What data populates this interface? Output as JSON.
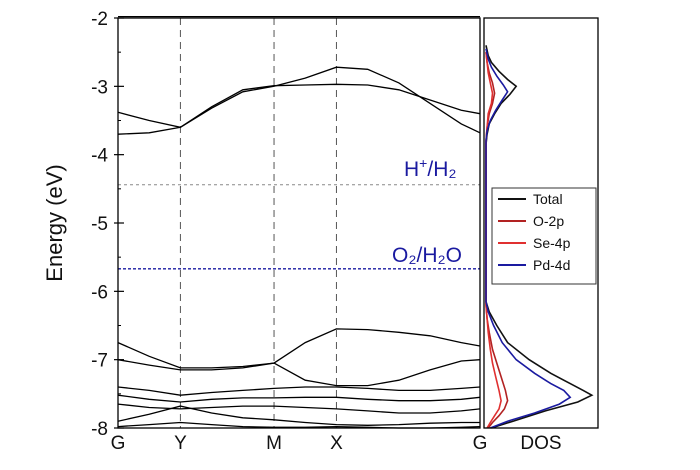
{
  "chart_data": [
    {
      "type": "line",
      "subtype": "band-structure",
      "title": "",
      "ylabel": "Energy (eV)",
      "xlabel": "",
      "ylim": [
        -8,
        -2
      ],
      "yticks": [
        -2,
        -3,
        -4,
        -5,
        -6,
        -7,
        -8
      ],
      "kpoints": [
        {
          "label": "G",
          "x": 0
        },
        {
          "label": "Y",
          "x": 1
        },
        {
          "label": "M",
          "x": 2.5
        },
        {
          "label": "X",
          "x": 3.5
        },
        {
          "label": "G",
          "x": 5.8
        }
      ],
      "reference_levels": [
        {
          "label": "H⁺/H₂",
          "label_main": "H",
          "label_sup": "+",
          "label_rest": "/H₂",
          "energy": -4.44,
          "color": "#888888"
        },
        {
          "label": "O₂/H₂O",
          "energy": -5.67,
          "color": "#1a1aa0"
        }
      ],
      "band_color": "#000000",
      "bands": [
        {
          "x": [
            0,
            0.5,
            1,
            1.5,
            2,
            2.5,
            3,
            3.5,
            4,
            4.5,
            5,
            5.5,
            5.8
          ],
          "y": [
            -3.7,
            -3.68,
            -3.6,
            -3.3,
            -3.05,
            -2.99,
            -2.98,
            -2.97,
            -2.98,
            -3.05,
            -3.2,
            -3.35,
            -3.4
          ]
        },
        {
          "x": [
            0,
            0.5,
            1,
            1.5,
            2,
            2.5,
            3,
            3.5,
            4,
            4.5,
            5,
            5.5,
            5.8
          ],
          "y": [
            -3.38,
            -3.5,
            -3.6,
            -3.32,
            -3.08,
            -3.0,
            -2.88,
            -2.72,
            -2.75,
            -2.95,
            -3.25,
            -3.55,
            -3.68
          ]
        },
        {
          "x": [
            0,
            0.5,
            1,
            1.5,
            2,
            2.5,
            3,
            3.5,
            4,
            4.5,
            5,
            5.5,
            5.8
          ],
          "y": [
            -6.75,
            -6.95,
            -7.12,
            -7.12,
            -7.1,
            -7.05,
            -6.75,
            -6.55,
            -6.56,
            -6.6,
            -6.65,
            -6.75,
            -6.8
          ]
        },
        {
          "x": [
            0,
            0.5,
            1,
            1.5,
            2,
            2.5,
            3,
            3.5,
            4,
            4.5,
            5,
            5.5,
            5.8
          ],
          "y": [
            -7.0,
            -7.08,
            -7.15,
            -7.15,
            -7.12,
            -7.05,
            -7.3,
            -7.38,
            -7.38,
            -7.3,
            -7.15,
            -7.02,
            -7.0
          ]
        },
        {
          "x": [
            0,
            0.5,
            1,
            1.5,
            2,
            2.5,
            3,
            3.5,
            4,
            4.5,
            5,
            5.5,
            5.8
          ],
          "y": [
            -7.4,
            -7.45,
            -7.52,
            -7.48,
            -7.45,
            -7.42,
            -7.4,
            -7.4,
            -7.42,
            -7.45,
            -7.45,
            -7.42,
            -7.4
          ]
        },
        {
          "x": [
            0,
            0.5,
            1,
            1.5,
            2,
            2.5,
            3,
            3.5,
            4,
            4.5,
            5,
            5.5,
            5.8
          ],
          "y": [
            -7.52,
            -7.58,
            -7.62,
            -7.58,
            -7.56,
            -7.56,
            -7.55,
            -7.55,
            -7.58,
            -7.6,
            -7.6,
            -7.58,
            -7.55
          ]
        },
        {
          "x": [
            0,
            0.5,
            1,
            1.5,
            2,
            2.5,
            3,
            3.5,
            4,
            4.5,
            5,
            5.5,
            5.8
          ],
          "y": [
            -7.65,
            -7.7,
            -7.72,
            -7.7,
            -7.68,
            -7.68,
            -7.7,
            -7.72,
            -7.75,
            -7.78,
            -7.78,
            -7.75,
            -7.72
          ]
        },
        {
          "x": [
            0,
            0.5,
            1,
            1.5,
            2,
            2.5,
            3,
            3.5,
            4,
            4.5,
            5,
            5.5,
            5.8
          ],
          "y": [
            -7.9,
            -7.8,
            -7.68,
            -7.78,
            -7.85,
            -7.88,
            -7.92,
            -7.95,
            -7.96,
            -7.95,
            -7.93,
            -7.92,
            -7.92
          ]
        },
        {
          "x": [
            0,
            0.5,
            1,
            1.5,
            2,
            2.5,
            3,
            3.5,
            4,
            4.5,
            5,
            5.5,
            5.8
          ],
          "y": [
            -7.98,
            -7.95,
            -7.92,
            -7.95,
            -7.98,
            -7.99,
            -7.99,
            -7.98,
            -7.99,
            -8.0,
            -8.0,
            -7.99,
            -7.98
          ]
        },
        {
          "x": [
            0,
            0.5,
            1,
            1.5,
            2,
            2.5,
            3,
            3.5,
            4,
            4.5,
            5,
            5.5,
            5.8
          ],
          "y": [
            -1.98,
            -1.98,
            -1.98,
            -1.98,
            -1.98,
            -1.98,
            -1.98,
            -1.98,
            -1.98,
            -1.98,
            -1.98,
            -1.98,
            -1.98
          ]
        }
      ]
    },
    {
      "type": "line",
      "subtype": "density-of-states",
      "xlabel": "DOS",
      "ylabel": "",
      "ylim": [
        -8,
        -2
      ],
      "xlim": [
        0,
        1
      ],
      "legend": {
        "position": "right-middle"
      },
      "series": [
        {
          "name": "Total",
          "color": "#111111",
          "x": [
            0,
            0.02,
            0.05,
            0.12,
            0.2,
            0.28,
            0.22,
            0.14,
            0.08,
            0.03,
            0.01,
            0,
            0,
            0,
            0,
            0.03,
            0.1,
            0.2,
            0.4,
            0.6,
            0.78,
            0.9,
            0.98,
            0.85,
            0.55,
            0.25,
            0.05
          ],
          "y": [
            -2.4,
            -2.55,
            -2.65,
            -2.78,
            -2.9,
            -3.0,
            -3.12,
            -3.25,
            -3.4,
            -3.55,
            -3.7,
            -3.85,
            -5.0,
            -6.0,
            -6.15,
            -6.3,
            -6.5,
            -6.75,
            -7.0,
            -7.2,
            -7.35,
            -7.45,
            -7.52,
            -7.62,
            -7.75,
            -7.9,
            -8.0
          ]
        },
        {
          "name": "O-2p",
          "color": "#b22222",
          "x": [
            0,
            0.01,
            0.03,
            0.06,
            0.08,
            0.06,
            0.03,
            0.01,
            0,
            0,
            0,
            0.01,
            0.03,
            0.06,
            0.1,
            0.14,
            0.18,
            0.2,
            0.17,
            0.12,
            0.06,
            0.02
          ],
          "y": [
            -2.5,
            -2.65,
            -2.8,
            -2.95,
            -3.1,
            -3.25,
            -3.4,
            -3.6,
            -3.8,
            -6.0,
            -6.2,
            -6.4,
            -6.6,
            -6.85,
            -7.05,
            -7.25,
            -7.45,
            -7.6,
            -7.72,
            -7.82,
            -7.92,
            -8.0
          ]
        },
        {
          "name": "Se-4p",
          "color": "#e03030",
          "x": [
            0,
            0.01,
            0.02,
            0.04,
            0.06,
            0.05,
            0.02,
            0.01,
            0,
            0,
            0,
            0.01,
            0.02,
            0.04,
            0.06,
            0.09,
            0.12,
            0.14,
            0.12,
            0.08,
            0.04,
            0.01
          ],
          "y": [
            -2.5,
            -2.65,
            -2.8,
            -2.95,
            -3.1,
            -3.25,
            -3.4,
            -3.6,
            -3.8,
            -6.0,
            -6.2,
            -6.4,
            -6.6,
            -6.85,
            -7.05,
            -7.25,
            -7.45,
            -7.6,
            -7.72,
            -7.82,
            -7.92,
            -8.0
          ]
        },
        {
          "name": "Pd-4d",
          "color": "#1a1aa0",
          "x": [
            0,
            0.02,
            0.05,
            0.1,
            0.16,
            0.2,
            0.15,
            0.09,
            0.04,
            0.01,
            0,
            0,
            0,
            0.02,
            0.07,
            0.15,
            0.28,
            0.45,
            0.6,
            0.72,
            0.78,
            0.68,
            0.45,
            0.2,
            0.04
          ],
          "y": [
            -2.45,
            -2.6,
            -2.72,
            -2.85,
            -2.98,
            -3.08,
            -3.2,
            -3.35,
            -3.5,
            -3.65,
            -3.8,
            -6.0,
            -6.15,
            -6.3,
            -6.5,
            -6.75,
            -7.0,
            -7.2,
            -7.35,
            -7.45,
            -7.55,
            -7.65,
            -7.78,
            -7.9,
            -8.0
          ]
        }
      ]
    }
  ]
}
